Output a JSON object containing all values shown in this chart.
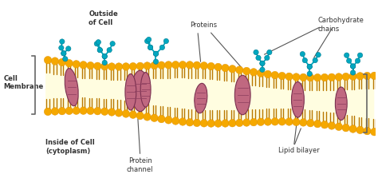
{
  "bg_color": "#ffffff",
  "membrane_bg": "#FFFDE0",
  "head_color": "#F5A800",
  "head_edge": "#E09000",
  "tail_color": "#B87800",
  "protein_fill": "#C06880",
  "protein_dark": "#904060",
  "protein_edge": "#7A3050",
  "carb_color": "#00A8C0",
  "carb_edge": "#007A90",
  "text_color": "#222222",
  "label_color": "#333333",
  "bracket_color": "#666666",
  "arrow_color": "#555555",
  "outside_label": "Outside\nof Cell",
  "inside_label": "Inside of Cell\n(cytoplasm)",
  "membrane_label": "Cell\nMembrane",
  "proteins_label": "Proteins",
  "carb_label": "Carbohydrate\nchains",
  "protein_channel_label": "Protein\nchannel",
  "lipid_bilayer_label": "Lipid bilayer",
  "figsize": [
    4.74,
    2.43
  ],
  "dpi": 100
}
